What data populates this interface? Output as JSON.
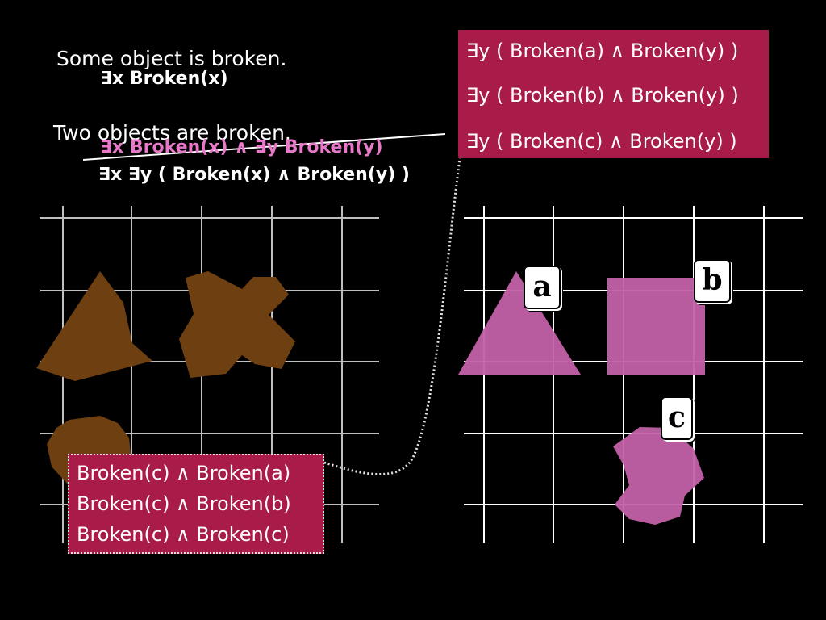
{
  "statements": {
    "some_text": "Some object is broken.",
    "some_formula": "∃x Broken(x)",
    "two_text": "Two objects are broken.",
    "two_wrong_formula": "∃x Broken(x) ∧ ∃y Broken(y)",
    "two_formula": "∃x ∃y ( Broken(x) ∧ Broken(y) )"
  },
  "expansion_right": [
    "∃y ( Broken(a) ∧ Broken(y) )",
    "∃y ( Broken(b) ∧ Broken(y) )",
    "∃y ( Broken(c) ∧ Broken(y) )"
  ],
  "expansion_left": [
    "Broken(c) ∧ Broken(a)",
    "Broken(c) ∧ Broken(b)",
    "Broken(c) ∧ Broken(c)"
  ],
  "objects": {
    "a": "a",
    "b": "b",
    "c": "c"
  },
  "colors": {
    "background": "#000000",
    "box": "#a91c4a",
    "pink_shape": "#c260a8",
    "brown_shape": "#6e3f10",
    "pink_text": "#e878c8",
    "grid_left": "#bfbfbf",
    "grid_right": "#ffffff"
  }
}
